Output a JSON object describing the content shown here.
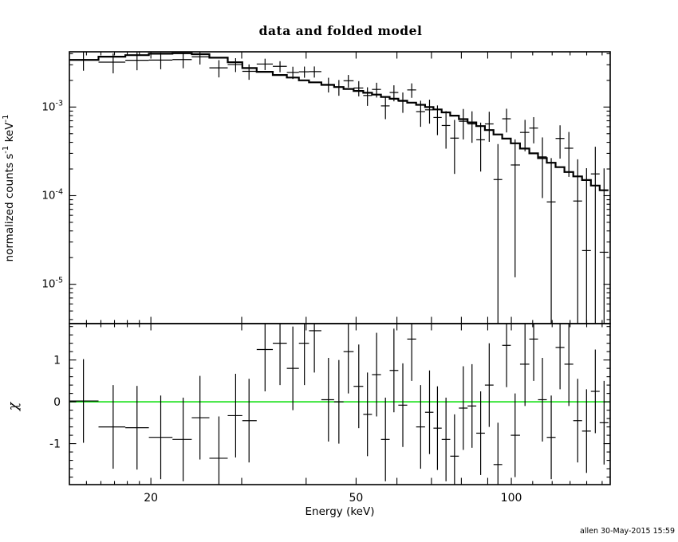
{
  "window": {
    "title": "data and folded model"
  },
  "footer": {
    "credit": "allen 30-May-2015 15:59"
  },
  "chart_data": {
    "type": "scatter",
    "title": "data and folded model",
    "xlabel": "Energy (keV)",
    "ylabel_top_parts": [
      "normalized counts s",
      "-1",
      " keV",
      "-1"
    ],
    "ylabel_bottom": "χ",
    "x_scale": "log",
    "xlim": [
      13.9,
      155.5
    ],
    "xticks_labeled": [
      20,
      50,
      100
    ],
    "xticks_major": [
      20,
      30,
      40,
      50,
      60,
      70,
      80,
      90,
      100
    ],
    "xticks_minor": [
      15,
      16,
      17,
      18,
      19,
      110,
      120,
      130,
      140,
      150
    ],
    "top_panel": {
      "y_scale": "log",
      "ylim": [
        3.6e-06,
        0.0042
      ],
      "yticks_labeled": [
        0.001,
        0.0001,
        1e-05
      ],
      "grid": false
    },
    "bottom_panel": {
      "y_scale": "linear",
      "ylim": [
        -1.98,
        1.87
      ],
      "yticks_labeled": [
        1,
        0,
        -1
      ],
      "ytick_minor_step": 0.2,
      "zero_line_value": 0
    },
    "colors": {
      "data": "#000000",
      "model": "#000000",
      "zero_line": "#00dd00",
      "frame": "#000000"
    },
    "series": {
      "energy": [
        14.8,
        16.9,
        18.8,
        20.9,
        23.1,
        24.9,
        27.1,
        29.2,
        31.0,
        33.3,
        35.6,
        37.7,
        39.7,
        41.5,
        44.2,
        46.3,
        48.3,
        50.6,
        52.6,
        54.8,
        57.0,
        59.2,
        61.6,
        64.1,
        66.7,
        69.4,
        71.9,
        74.7,
        77.6,
        80.7,
        83.9,
        87.2,
        90.6,
        94.2,
        97.9,
        101.7,
        106.3,
        110.5,
        114.9,
        119.5,
        124.3,
        129.3,
        134.5,
        139.9,
        145.5,
        151.3
      ],
      "energy_halfwidth": [
        0.95,
        0.99,
        1.0,
        1.06,
        1.01,
        1.0,
        1.06,
        0.99,
        1.02,
        1.16,
        1.11,
        1.01,
        0.95,
        1.11,
        1.18,
        1.03,
        1.08,
        1.08,
        1.03,
        1.07,
        1.12,
        1.16,
        1.21,
        1.26,
        1.31,
        1.36,
        1.41,
        1.46,
        1.52,
        1.58,
        1.64,
        1.71,
        1.78,
        1.85,
        1.92,
        1.99,
        2.08,
        2.17,
        2.25,
        2.34,
        2.44,
        2.53,
        2.64,
        2.74,
        2.85,
        2.96
      ],
      "counts": [
        0.00342,
        0.00321,
        0.00337,
        0.00339,
        0.00343,
        0.00369,
        0.00277,
        0.00302,
        0.00253,
        0.00306,
        0.00288,
        0.00246,
        0.0025,
        0.00251,
        0.0018,
        0.00168,
        0.00198,
        0.00164,
        0.00135,
        0.00158,
        0.00103,
        0.00146,
        0.00116,
        0.00156,
        0.000888,
        0.00093,
        0.000762,
        0.000619,
        0.000446,
        0.000691,
        0.000645,
        0.000427,
        0.000645,
        0.000152,
        0.000737,
        0.000222,
        0.000517,
        0.000579,
        0.000274,
        8.5e-05,
        0.000442,
        0.000343,
        8.7e-05,
        2.4e-05,
        0.000176,
        2.3e-05
      ],
      "counts_err": [
        0.00085,
        0.00081,
        0.00077,
        0.00072,
        0.00069,
        0.00067,
        0.00061,
        0.00054,
        0.0005,
        0.00045,
        0.00041,
        0.00039,
        0.00036,
        0.00036,
        0.00034,
        0.00034,
        0.00032,
        0.00032,
        0.00032,
        0.0003,
        0.0003,
        0.0003,
        0.0003,
        0.00029,
        0.00029,
        0.00028,
        0.00028,
        0.00028,
        0.00027,
        0.00026,
        0.00025,
        0.00024,
        0.00024,
        0.00023,
        0.00022,
        0.00021,
        0.0002,
        0.00019,
        0.00018,
        0.00018,
        0.00018,
        0.00018,
        0.00017,
        0.00018,
        0.00018,
        0.00018
      ],
      "model": [
        0.0034,
        0.0037,
        0.00385,
        0.004,
        0.00405,
        0.00395,
        0.0036,
        0.0032,
        0.00275,
        0.0025,
        0.0023,
        0.00215,
        0.002,
        0.0019,
        0.00178,
        0.00168,
        0.0016,
        0.00152,
        0.00145,
        0.00138,
        0.0013,
        0.00124,
        0.00118,
        0.00112,
        0.00106,
        0.001,
        0.00094,
        0.00087,
        0.0008,
        0.00073,
        0.00067,
        0.00061,
        0.00055,
        0.00049,
        0.00044,
        0.00039,
        0.00034,
        0.0003,
        0.000265,
        0.000235,
        0.00021,
        0.000185,
        0.000165,
        0.00015,
        0.00013,
        0.000115
      ],
      "chi": [
        0.02,
        -0.6,
        -0.62,
        -0.85,
        -0.9,
        -0.38,
        -1.35,
        -0.33,
        -0.45,
        1.25,
        1.4,
        0.8,
        1.4,
        1.7,
        0.05,
        0.0,
        1.2,
        0.37,
        -0.3,
        0.65,
        -0.9,
        0.75,
        -0.08,
        1.5,
        -0.6,
        -0.25,
        -0.63,
        -0.9,
        -1.3,
        -0.15,
        -0.1,
        -0.75,
        0.4,
        -1.5,
        1.35,
        -0.8,
        0.9,
        1.5,
        0.05,
        -0.85,
        1.3,
        0.9,
        -0.45,
        -0.7,
        0.25,
        -0.5
      ],
      "chi_err": 1
    }
  }
}
